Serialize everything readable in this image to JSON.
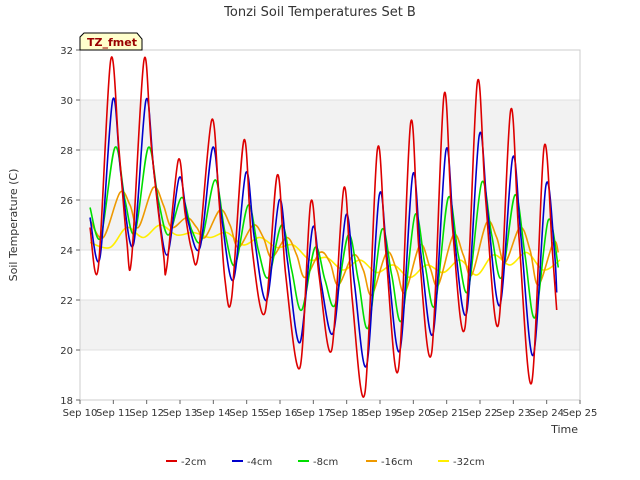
{
  "chart_data": {
    "type": "line",
    "title": "Tonzi Soil Temperatures Set B",
    "xlabel": "Time",
    "ylabel": "Soil Temperature (C)",
    "ylim": [
      18,
      32
    ],
    "yticks": [
      18,
      20,
      22,
      24,
      26,
      28,
      30,
      32
    ],
    "xlim": [
      0,
      15
    ],
    "xtick_labels": [
      "Sep 10",
      "Sep 11",
      "Sep 12",
      "Sep 13",
      "Sep 14",
      "Sep 15",
      "Sep 16",
      "Sep 17",
      "Sep 18",
      "Sep 19",
      "Sep 20",
      "Sep 21",
      "Sep 22",
      "Sep 23",
      "Sep 24",
      "Sep 25"
    ],
    "grid": "horizontal bands",
    "legend_position": "bottom",
    "annotation": "TZ_fmet",
    "series": [
      {
        "name": "-2cm",
        "color": "#dd0000",
        "x": [
          0.3,
          0.55,
          0.92,
          1.17,
          1.4,
          1.55,
          1.92,
          2.15,
          2.5,
          2.6,
          2.95,
          3.15,
          3.35,
          3.55,
          3.95,
          4.17,
          4.35,
          4.55,
          4.92,
          5.17,
          5.55,
          5.92,
          6.17,
          6.6,
          6.92,
          7.17,
          7.55,
          7.92,
          8.17,
          8.55,
          8.92,
          9.17,
          9.55,
          9.92,
          10.17,
          10.55,
          10.92,
          11.17,
          11.55,
          11.92,
          12.17,
          12.55,
          12.92,
          13.17,
          13.55,
          13.92,
          14.17,
          14.3
        ],
        "y": [
          24.9,
          23.3,
          31.6,
          28.0,
          24.4,
          23.7,
          31.6,
          28.0,
          23.9,
          23.3,
          27.6,
          25.5,
          24.0,
          23.8,
          29.2,
          26.0,
          22.8,
          22.1,
          28.4,
          24.0,
          21.5,
          27.0,
          23.0,
          19.3,
          25.9,
          23.0,
          20.0,
          26.5,
          22.0,
          18.3,
          28.0,
          24.0,
          19.2,
          29.1,
          24.0,
          19.9,
          30.2,
          25.0,
          20.9,
          30.7,
          26.0,
          21.0,
          29.6,
          24.5,
          18.7,
          28.1,
          24.0,
          21.6
        ]
      },
      {
        "name": "-4cm",
        "color": "#0000cc",
        "x": [
          0.3,
          0.6,
          0.98,
          1.23,
          1.6,
          1.98,
          2.23,
          2.6,
          2.98,
          3.23,
          3.6,
          3.98,
          4.23,
          4.6,
          4.98,
          5.23,
          5.6,
          5.98,
          6.23,
          6.6,
          6.98,
          7.23,
          7.6,
          7.98,
          8.23,
          8.6,
          8.98,
          9.23,
          9.6,
          9.98,
          10.23,
          10.6,
          10.98,
          11.23,
          11.6,
          11.98,
          12.23,
          12.6,
          12.98,
          13.23,
          13.6,
          13.98,
          14.23,
          14.3
        ],
        "y": [
          25.3,
          23.7,
          30.0,
          27.0,
          24.2,
          30.0,
          27.0,
          23.8,
          26.9,
          25.2,
          24.1,
          28.1,
          25.5,
          22.8,
          27.1,
          24.5,
          22.0,
          26.0,
          23.5,
          20.3,
          24.9,
          22.7,
          20.7,
          25.4,
          22.7,
          19.4,
          26.2,
          23.5,
          20.0,
          27.0,
          23.8,
          20.7,
          28.0,
          24.5,
          21.5,
          28.6,
          25.5,
          21.8,
          27.7,
          24.5,
          19.8,
          26.6,
          24.0,
          22.3
        ]
      },
      {
        "name": "-8cm",
        "color": "#00dd00",
        "x": [
          0.3,
          0.62,
          1.05,
          1.35,
          1.65,
          2.05,
          2.35,
          2.65,
          3.05,
          3.35,
          3.65,
          4.05,
          4.35,
          4.65,
          5.05,
          5.35,
          5.65,
          6.05,
          6.35,
          6.65,
          7.05,
          7.35,
          7.65,
          8.05,
          8.35,
          8.65,
          9.05,
          9.35,
          9.65,
          10.05,
          10.35,
          10.65,
          11.05,
          11.35,
          11.65,
          12.05,
          12.35,
          12.65,
          13.05,
          13.35,
          13.65,
          14.05,
          14.35
        ],
        "y": [
          25.7,
          24.5,
          28.1,
          26.0,
          24.7,
          28.1,
          26.0,
          24.6,
          26.1,
          24.8,
          24.4,
          26.8,
          24.7,
          23.4,
          25.8,
          24.0,
          22.9,
          25.0,
          23.2,
          21.6,
          24.1,
          22.8,
          21.8,
          24.6,
          22.8,
          20.9,
          24.8,
          23.0,
          21.2,
          25.4,
          23.4,
          21.8,
          26.1,
          23.8,
          22.4,
          26.7,
          24.6,
          22.9,
          26.2,
          23.8,
          21.3,
          25.2,
          23.3
        ]
      },
      {
        "name": "-16cm",
        "color": "#ee9900",
        "x": [
          0.3,
          0.7,
          1.2,
          1.5,
          1.75,
          2.2,
          2.5,
          2.75,
          3.2,
          3.5,
          3.75,
          4.2,
          4.5,
          4.75,
          5.2,
          5.5,
          5.75,
          6.2,
          6.5,
          6.75,
          7.2,
          7.5,
          7.75,
          8.2,
          8.5,
          8.75,
          9.2,
          9.5,
          9.75,
          10.2,
          10.5,
          10.75,
          11.2,
          11.5,
          11.75,
          12.2,
          12.5,
          12.75,
          13.2,
          13.5,
          13.75,
          14.2,
          14.35
        ],
        "y": [
          25.2,
          24.5,
          26.3,
          25.8,
          24.9,
          26.5,
          25.8,
          24.9,
          25.3,
          24.9,
          24.5,
          25.6,
          25.0,
          24.1,
          25.0,
          24.5,
          23.7,
          24.5,
          23.8,
          22.9,
          23.9,
          23.5,
          22.6,
          23.8,
          23.2,
          22.2,
          23.9,
          23.2,
          22.3,
          24.2,
          23.3,
          22.6,
          24.6,
          23.8,
          23.0,
          25.1,
          24.5,
          23.5,
          24.9,
          24.0,
          22.6,
          24.3,
          23.9
        ]
      },
      {
        "name": "-32cm",
        "color": "#ffee00",
        "x": [
          0.3,
          0.9,
          1.4,
          1.9,
          2.4,
          2.9,
          3.4,
          3.9,
          4.4,
          4.9,
          5.4,
          5.9,
          6.4,
          6.9,
          7.4,
          7.9,
          8.4,
          8.9,
          9.4,
          9.9,
          10.4,
          10.9,
          11.4,
          11.9,
          12.4,
          12.9,
          13.4,
          13.9,
          14.4
        ],
        "y": [
          24.3,
          24.1,
          24.9,
          24.5,
          25.0,
          24.6,
          24.7,
          24.5,
          24.7,
          24.2,
          24.5,
          24.1,
          24.2,
          23.6,
          23.7,
          23.2,
          23.6,
          23.1,
          23.4,
          22.9,
          23.4,
          23.1,
          23.6,
          23.0,
          23.8,
          23.4,
          23.9,
          23.2,
          23.6
        ]
      }
    ]
  }
}
